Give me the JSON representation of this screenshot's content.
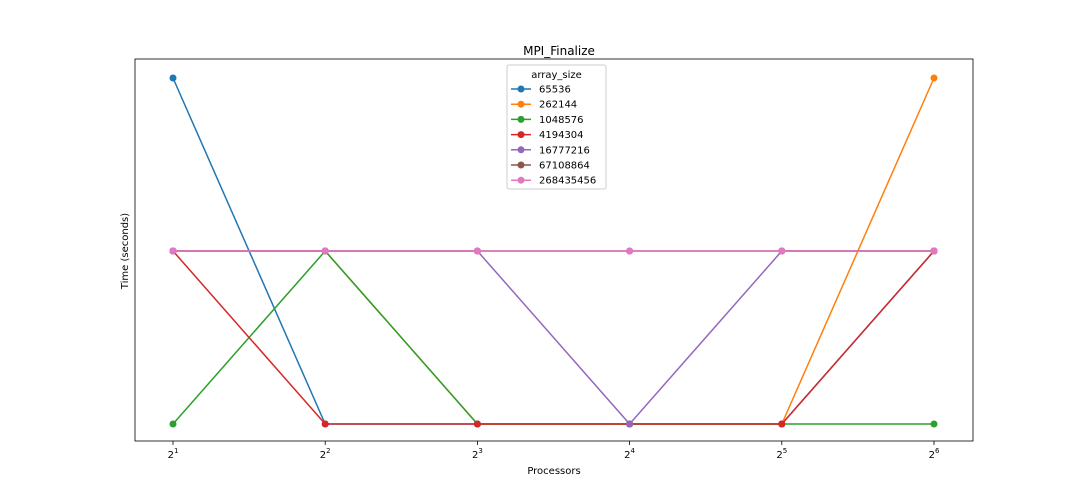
{
  "chart_data": {
    "type": "line",
    "title": "MPI_Finalize",
    "xlabel": "Processors",
    "ylabel": "Time (seconds)",
    "x_scale": "log2",
    "x_ticks": [
      {
        "base": "2",
        "exp": "1",
        "value": 2
      },
      {
        "base": "2",
        "exp": "2",
        "value": 4
      },
      {
        "base": "2",
        "exp": "3",
        "value": 8
      },
      {
        "base": "2",
        "exp": "4",
        "value": 16
      },
      {
        "base": "2",
        "exp": "5",
        "value": 32
      },
      {
        "base": "2",
        "exp": "6",
        "value": 64
      }
    ],
    "x": [
      2,
      4,
      8,
      16,
      32,
      64
    ],
    "y_ticks": "none",
    "ylim": [
      0,
      1
    ],
    "grid": false,
    "legend": {
      "title": "array_size",
      "placement": "upper center"
    },
    "series": [
      {
        "name": "65536",
        "color": "#1f77b4",
        "values": [
          1.0,
          0.0,
          0.0,
          0.0,
          0.0,
          0.5
        ]
      },
      {
        "name": "262144",
        "color": "#ff7f0e",
        "values": [
          0.5,
          0.5,
          0.0,
          0.0,
          0.0,
          1.0
        ]
      },
      {
        "name": "1048576",
        "color": "#2ca02c",
        "values": [
          0.0,
          0.5,
          0.0,
          0.0,
          0.0,
          0.0
        ]
      },
      {
        "name": "4194304",
        "color": "#d62728",
        "values": [
          0.5,
          0.0,
          0.0,
          0.0,
          0.0,
          0.5
        ]
      },
      {
        "name": "16777216",
        "color": "#9467bd",
        "values": [
          0.5,
          0.5,
          0.5,
          0.0,
          0.5,
          0.5
        ]
      },
      {
        "name": "67108864",
        "color": "#8c564b",
        "values": [
          0.5,
          0.5,
          0.5,
          0.5,
          0.5,
          0.5
        ]
      },
      {
        "name": "268435456",
        "color": "#e377c2",
        "values": [
          0.5,
          0.5,
          0.5,
          0.5,
          0.5,
          0.5
        ]
      }
    ]
  }
}
